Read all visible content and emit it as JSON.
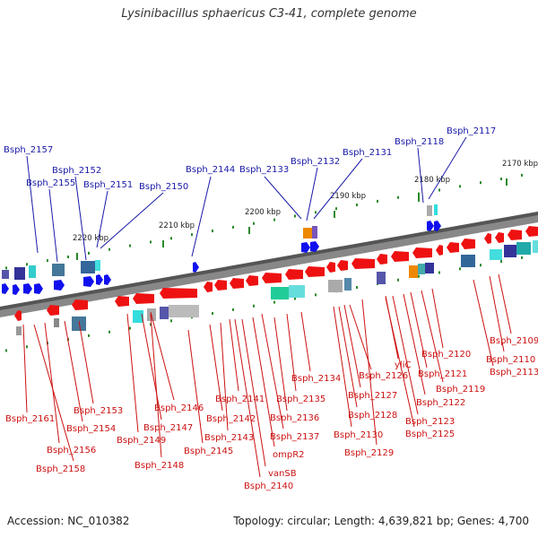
{
  "title": "Lysinibacillus sphaericus C3-41, complete genome",
  "footer": {
    "accession": "Accession: NC_010382",
    "summary": "Topology: circular; Length: 4,639,821 bp; Genes: 4,700"
  },
  "colors": {
    "top_labels": "#1a1aa8",
    "bottom_labels": "#cc1111",
    "forward_arrows": "#1010ee",
    "reverse_arrows": "#ee1111",
    "backbone": "#777777",
    "tick": "#2a8a2a"
  },
  "kbp_marks": [
    "2170 kbp",
    "2180 kbp",
    "2190 kbp",
    "2200 kbp",
    "2210 kbp",
    "2220 kbp"
  ],
  "top_labels": [
    "Bsph_2157",
    "Bsph_2155",
    "Bsph_2152",
    "Bsph_2151",
    "Bsph_2150",
    "Bsph_2144",
    "Bsph_2133",
    "Bsph_2132",
    "Bsph_2131",
    "Bsph_2118",
    "Bsph_2117"
  ],
  "bottom_labels": [
    "Bsph_2161",
    "Bsph_2156",
    "Bsph_2158",
    "Bsph_2153",
    "Bsph_2154",
    "Bsph_2149",
    "Bsph_2148",
    "Bsph_2146",
    "Bsph_2147",
    "Bsph_2142",
    "Bsph_2143",
    "Bsph_2145",
    "Bsph_2141",
    "Bsph_2137",
    "Bsph_2136",
    "ompR2",
    "vanSB",
    "Bsph_2140",
    "Bsph_2135",
    "Bsph_2134",
    "Bsph_2126",
    "Bsph_2127",
    "Bsph_2128",
    "Bsph_2130",
    "Bsph_2129",
    "yliC",
    "Bsph_2125",
    "Bsph_2123",
    "Bsph_2122",
    "Bsph_2121",
    "Bsph_2119",
    "Bsph_2120",
    "Bsph_2113",
    "Bsph_2110",
    "Bsph_2109"
  ]
}
